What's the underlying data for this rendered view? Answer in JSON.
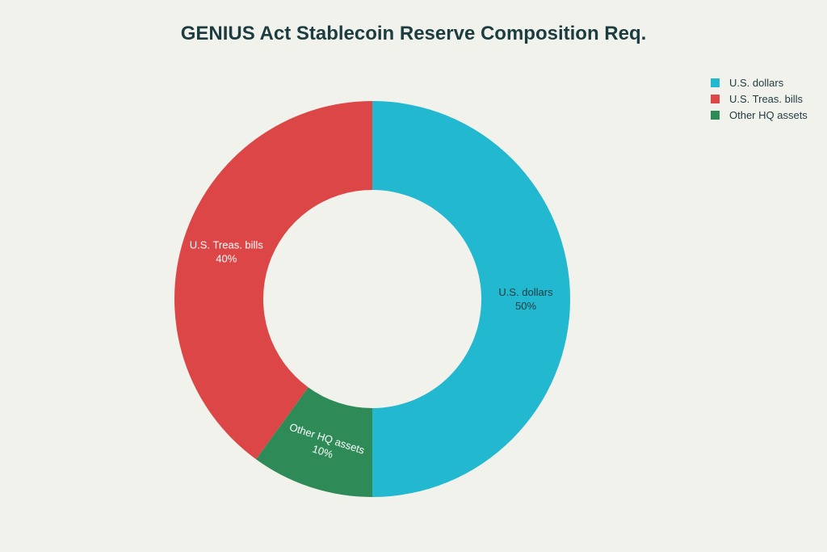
{
  "chart_data": {
    "type": "pie",
    "title": "GENIUS Act Stablecoin Reserve Composition Req.",
    "donut": true,
    "legend_position": "top-right",
    "slices": [
      {
        "label": "U.S. dollars",
        "value": 50,
        "value_label": "50%",
        "color": "#22b8cf",
        "label_color": "#1f3a3f"
      },
      {
        "label": "Other HQ assets",
        "value": 10,
        "value_label": "10%",
        "color": "#2e8b57",
        "label_color": "#ffffff"
      },
      {
        "label": "U.S. Treas. bills",
        "value": 40,
        "value_label": "40%",
        "color": "#dc4646",
        "label_color": "#ffffff"
      }
    ],
    "legend": [
      {
        "label": "U.S. dollars",
        "color": "#22b8cf"
      },
      {
        "label": "U.S. Treas. bills",
        "color": "#dc4646"
      },
      {
        "label": "Other HQ assets",
        "color": "#2e8b57"
      }
    ]
  }
}
